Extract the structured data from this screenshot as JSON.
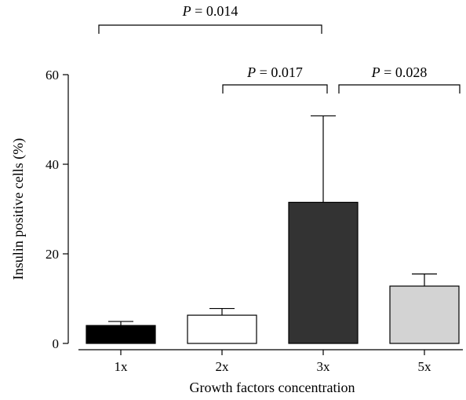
{
  "chart_data": {
    "type": "bar",
    "title": "",
    "xlabel": "Growth factors concentration",
    "ylabel": "Insulin positive cells (%)",
    "ylim": [
      0,
      60
    ],
    "yticks": [
      0,
      20,
      40,
      60
    ],
    "categories": [
      "1x",
      "2x",
      "3x",
      "5x"
    ],
    "values": [
      4.0,
      6.3,
      31.5,
      12.8
    ],
    "errors": [
      0.9,
      1.5,
      19.3,
      2.7
    ],
    "bar_colors": [
      "#000000",
      "#ffffff",
      "#333333",
      "#d3d3d3"
    ],
    "grid": false,
    "legend": "none",
    "significance": [
      {
        "from": 0,
        "to": 2,
        "label_prefix": "P",
        "label_value": " = 0.014"
      },
      {
        "from": 1,
        "to": 2,
        "label_prefix": "P",
        "label_value": " = 0.017"
      },
      {
        "from": 2,
        "to": 3,
        "label_prefix": "P",
        "label_value": " = 0.028"
      }
    ]
  }
}
